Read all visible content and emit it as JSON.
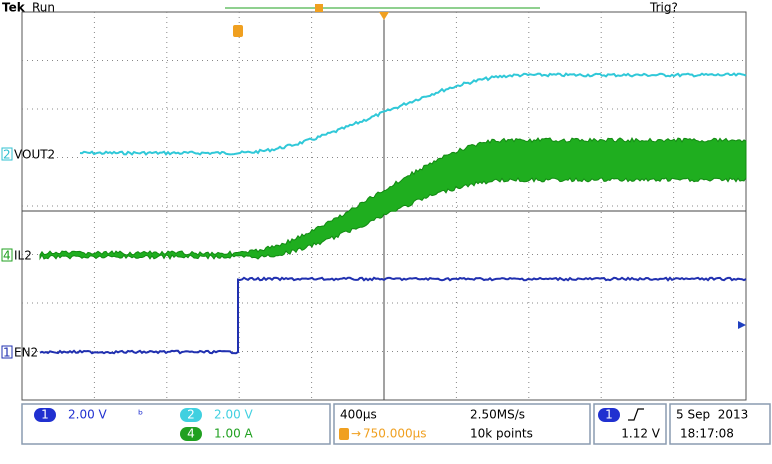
{
  "header": {
    "brand": "Tek",
    "state": "Run",
    "trigger_state": "Trig?"
  },
  "channel_labels": [
    {
      "number": "2",
      "label": "VOUT2"
    },
    {
      "number": "4",
      "label": "IL2"
    },
    {
      "number": "1",
      "label": "EN2"
    }
  ],
  "readouts": {
    "ch1": {
      "number": "1",
      "scale": "2.00 V"
    },
    "ch2": {
      "number": "2",
      "scale": "2.00 V"
    },
    "ch4": {
      "number": "4",
      "scale": "1.00 A"
    },
    "timebase": "400µs",
    "sample_rate": "2.50MS/s",
    "trigger_position": "750.000µs",
    "record_length": "10k points",
    "trigger_source": "1",
    "trigger_level": "1.12 V",
    "date": "5 Sep  2013",
    "time": "18:17:08"
  }
}
